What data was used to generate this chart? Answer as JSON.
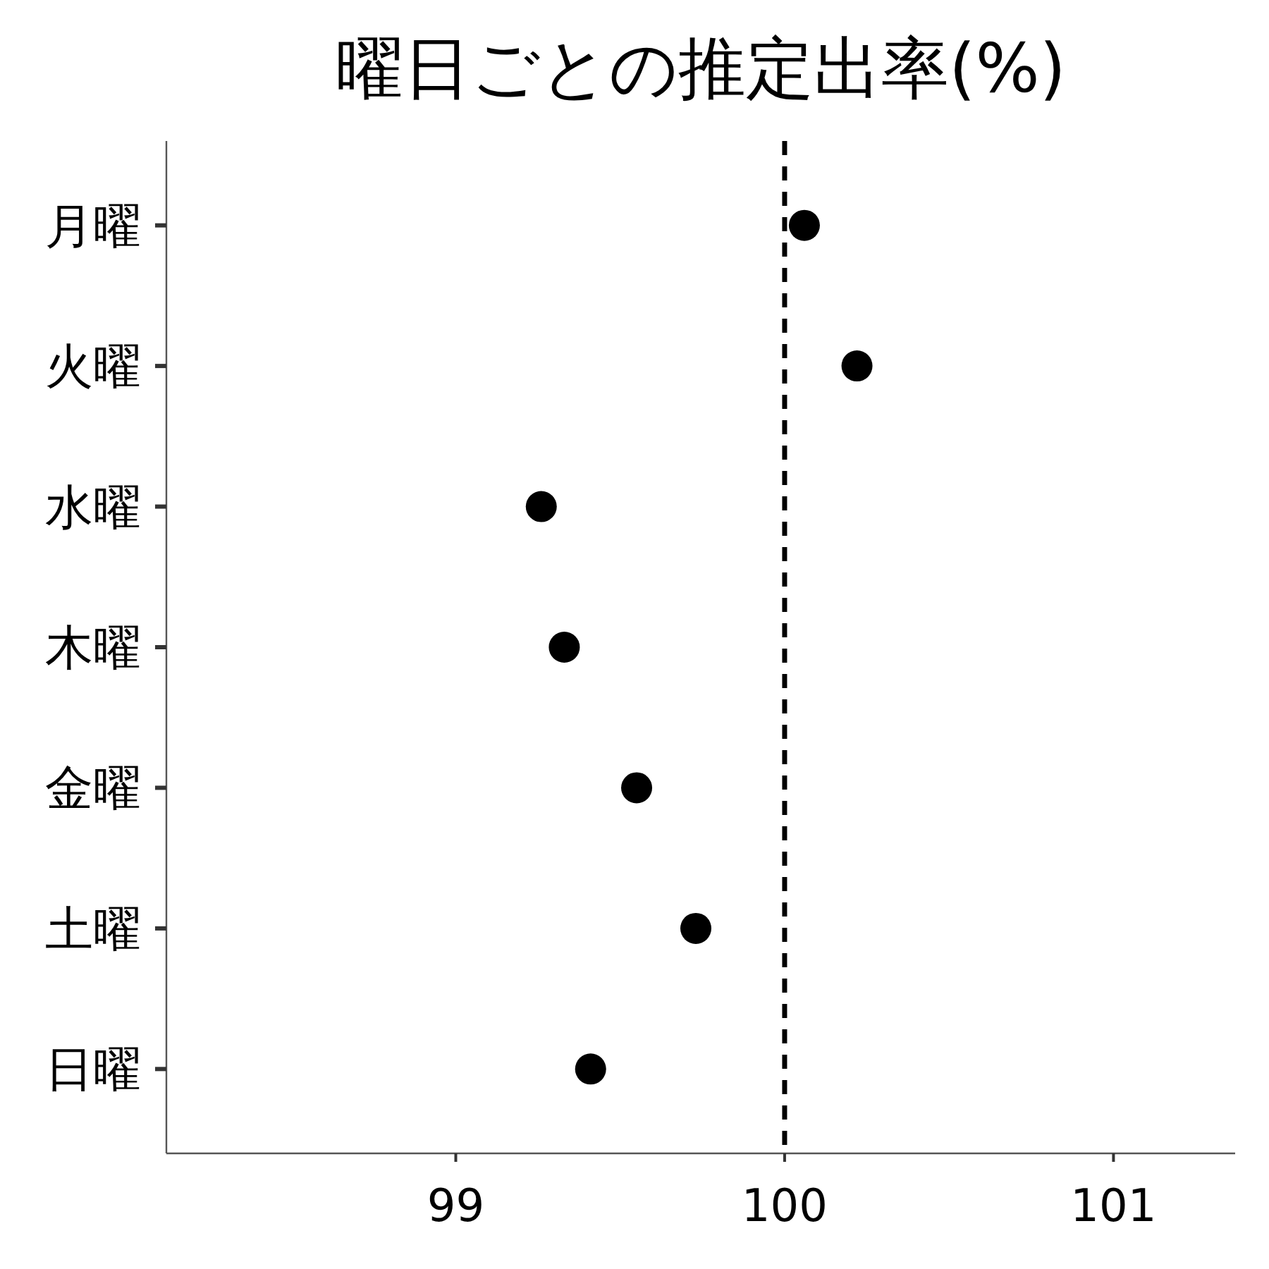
{
  "chart_data": {
    "type": "scatter",
    "orientation": "horizontal",
    "title": "曜日ごとの推定出率(%)",
    "categories": [
      "月曜",
      "火曜",
      "水曜",
      "木曜",
      "金曜",
      "土曜",
      "日曜"
    ],
    "values": [
      100.06,
      100.22,
      99.26,
      99.33,
      99.55,
      99.73,
      99.41
    ],
    "color": "#000000",
    "marker": "circle",
    "xlim": [
      98.12,
      101.37
    ],
    "xticks": [
      99,
      100,
      101
    ],
    "ref_lines": [
      {
        "axis": "x",
        "value": 100,
        "line_style": "dashed",
        "color": "#000000"
      }
    ]
  }
}
